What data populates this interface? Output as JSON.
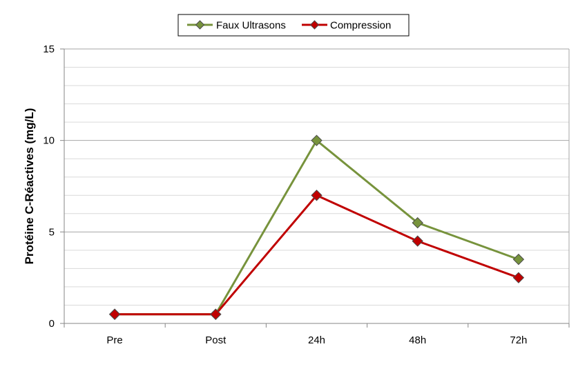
{
  "chart_data": {
    "type": "line",
    "title": "",
    "xlabel": "",
    "ylabel": "Protéine C-Réactives (mg/L)",
    "categories": [
      "Pre",
      "Post",
      "24h",
      "48h",
      "72h"
    ],
    "ylim": [
      0,
      15
    ],
    "yticks": [
      "0",
      "5",
      "10",
      "15"
    ],
    "grid": true,
    "legend_position": "top-center",
    "series": [
      {
        "name": "Faux Ultrasons",
        "color": "#77933c",
        "marker_color": "#77933c",
        "values": [
          0.5,
          0.5,
          10,
          5.5,
          3.5
        ]
      },
      {
        "name": "Compression",
        "color": "#c00000",
        "marker_color": "#c00000",
        "values": [
          0.5,
          0.5,
          7,
          4.5,
          2.5
        ]
      }
    ]
  }
}
